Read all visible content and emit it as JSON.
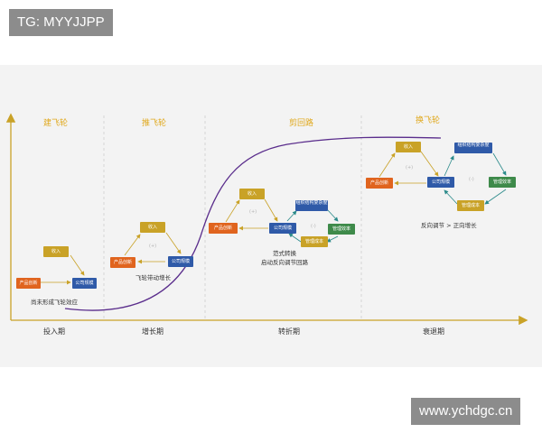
{
  "watermarks": {
    "top_left": "TG: MYYJJPP",
    "bottom_right": "www.ychdgc.cn"
  },
  "stages": {
    "s1": "建飞轮",
    "s2": "推飞轮",
    "s3": "剪回路",
    "s4": "换飞轮"
  },
  "phases": {
    "p1": "投入期",
    "p2": "增长期",
    "p3": "转折期",
    "p4": "衰退期"
  },
  "captions": {
    "c1": "尚未形成飞轮效应",
    "c2": "飞轮带动增长",
    "c3_line1": "范式转换",
    "c3_line2": "启动反向调节回路",
    "c4": "反向调节 > 正向增长"
  },
  "boxes": {
    "income": "收入",
    "product": "产品创新",
    "scale": "公司规模",
    "complex": "组织结构复杂度",
    "mgmt_eff": "管理效率",
    "mgmt_cost": "管理成本"
  },
  "loop_marks": {
    "plus": "(+)",
    "minus": "(-)"
  },
  "colors": {
    "income": "#c9a227",
    "product": "#e0641e",
    "scale": "#2f5aa8",
    "complex": "#2f5aa8",
    "mgmt_eff": "#3e8a4a",
    "mgmt_cost": "#c9a227",
    "curve": "#5a2d8c",
    "axis": "#c9a227",
    "divider": "#cccccc",
    "arrow": "#c9a227",
    "arrow_neg": "#2a8a8a"
  }
}
